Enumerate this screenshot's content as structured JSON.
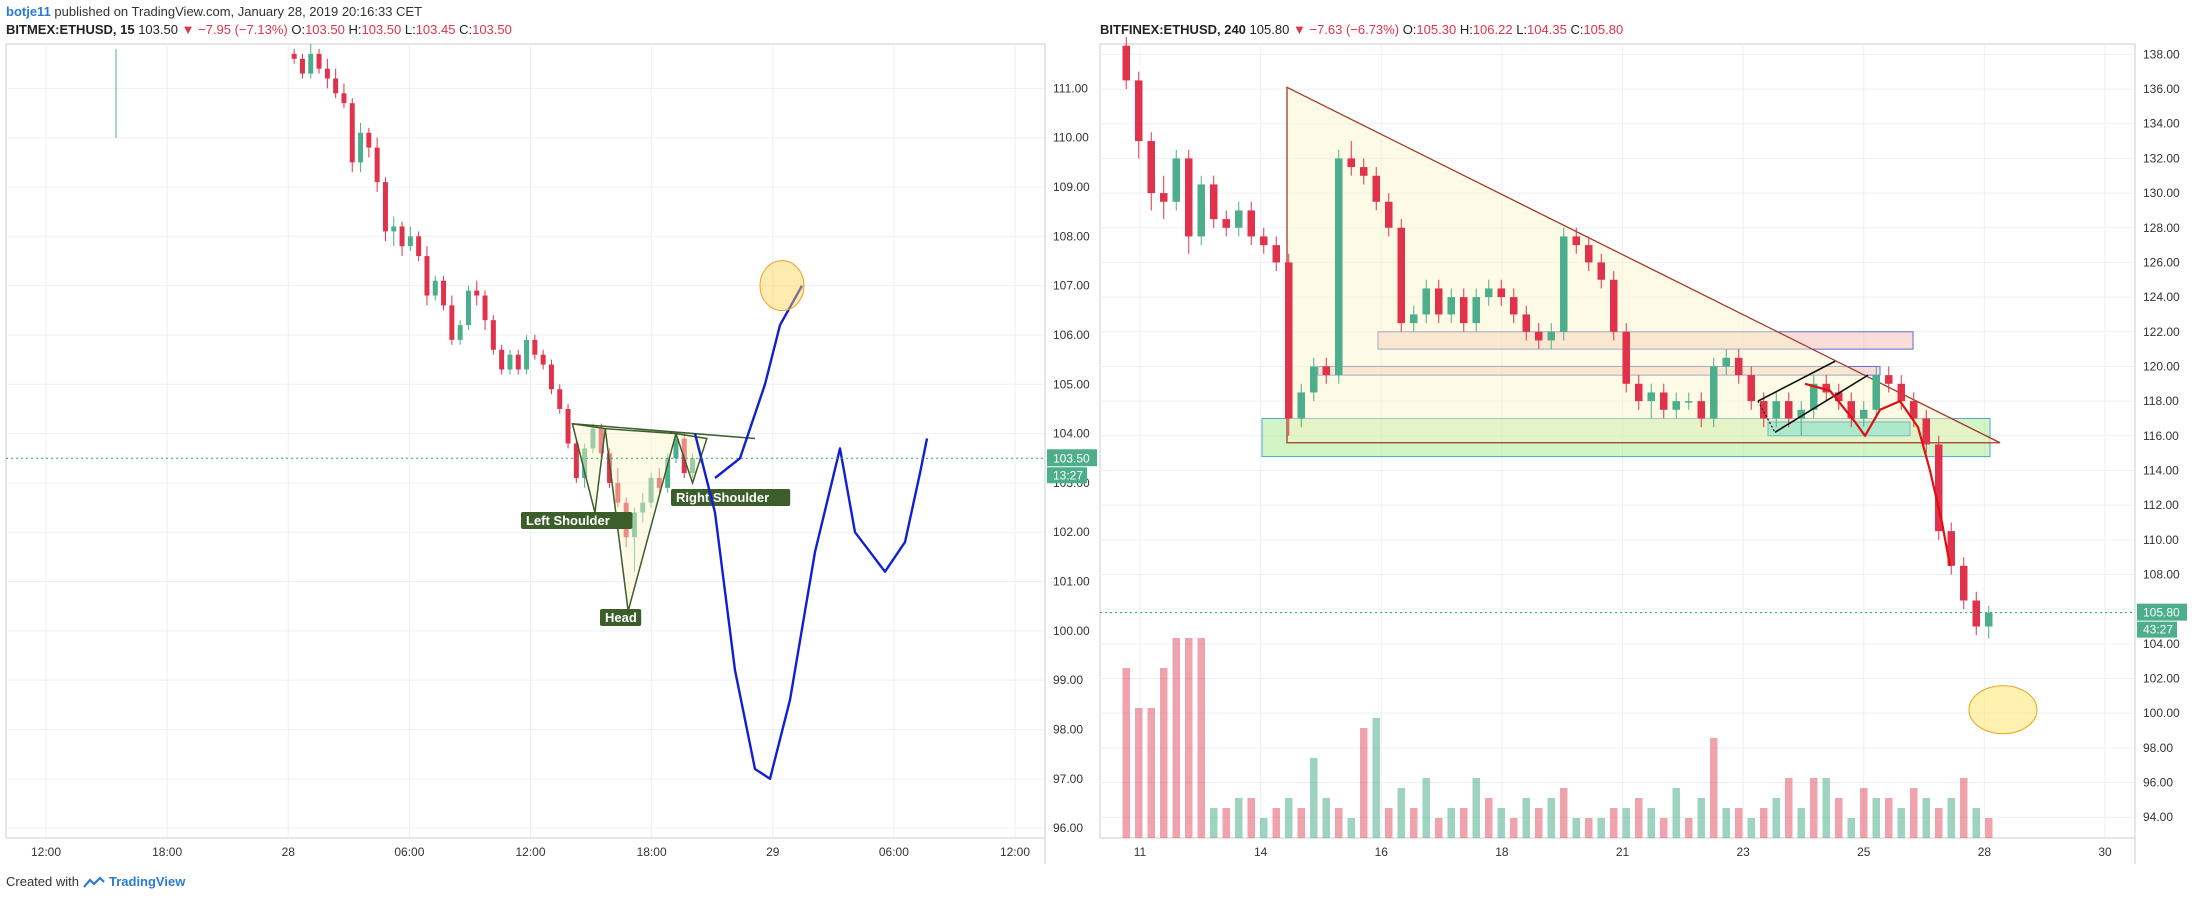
{
  "header": {
    "user": "botje11",
    "published_text": "published on TradingView.com, January 28, 2019 20:16:33 CET"
  },
  "footer": {
    "created_with": "Created with",
    "brand": "TradingView"
  },
  "colors": {
    "up": "#4cae8a",
    "down": "#e0324a",
    "annotation_green": "#3b5e2b",
    "drawing_blue": "#1020d0",
    "price_line": "#2aa07a"
  },
  "icons": [
    "tradingview-logo-icon",
    "down-triangle-icon"
  ],
  "chart_data": [
    {
      "type": "candlestick",
      "symbol": "BITMEX:ETHUSD, 15",
      "last": "103.50",
      "change": "−7.95 (−7.13%)",
      "ohlc": {
        "O": "103.50",
        "H": "103.50",
        "L": "103.45",
        "C": "103.50"
      },
      "current_price_label": "103.50",
      "countdown_label": "13:27",
      "current_price": 103.5,
      "ylim": [
        95.8,
        111.9
      ],
      "y_ticks": [
        96,
        97,
        98,
        99,
        100,
        101,
        102,
        103,
        104,
        105,
        106,
        107,
        108,
        109,
        110,
        111
      ],
      "y_tick_labels": [
        "96.00",
        "97.00",
        "98.00",
        "99.00",
        "100.00",
        "101.00",
        "102.00",
        "103.00",
        "104.00",
        "105.00",
        "106.00",
        "107.00",
        "108.00",
        "109.00",
        "110.00",
        "111.00"
      ],
      "x_ticks": [
        "12:00",
        "18:00",
        "28",
        "06:00",
        "12:00",
        "18:00",
        "29",
        "06:00",
        "12:00"
      ],
      "annotations": [
        "Left Shoulder",
        "Head",
        "Right Shoulder"
      ],
      "candles": [
        [
          111.7,
          111.8,
          111.5,
          111.6
        ],
        [
          111.6,
          111.7,
          111.2,
          111.3
        ],
        [
          111.3,
          111.9,
          111.2,
          111.7
        ],
        [
          111.7,
          111.8,
          111.3,
          111.4
        ],
        [
          111.4,
          111.6,
          111.0,
          111.2
        ],
        [
          111.2,
          111.4,
          110.8,
          110.9
        ],
        [
          110.9,
          111.1,
          110.6,
          110.7
        ],
        [
          110.7,
          110.8,
          109.3,
          109.5
        ],
        [
          109.5,
          110.3,
          109.3,
          110.1
        ],
        [
          110.1,
          110.2,
          109.6,
          109.8
        ],
        [
          109.8,
          110.0,
          108.9,
          109.1
        ],
        [
          109.1,
          109.2,
          107.9,
          108.1
        ],
        [
          108.1,
          108.4,
          107.8,
          108.2
        ],
        [
          108.2,
          108.3,
          107.6,
          107.8
        ],
        [
          107.8,
          108.2,
          107.7,
          108.0
        ],
        [
          108.0,
          108.1,
          107.5,
          107.6
        ],
        [
          107.6,
          107.8,
          106.6,
          106.8
        ],
        [
          106.8,
          107.2,
          106.7,
          107.1
        ],
        [
          107.1,
          107.2,
          106.5,
          106.6
        ],
        [
          106.6,
          106.8,
          105.8,
          105.9
        ],
        [
          105.9,
          106.3,
          105.8,
          106.2
        ],
        [
          106.2,
          107.0,
          106.1,
          106.9
        ],
        [
          106.9,
          107.1,
          106.6,
          106.8
        ],
        [
          106.8,
          106.9,
          106.1,
          106.3
        ],
        [
          106.3,
          106.4,
          105.6,
          105.7
        ],
        [
          105.7,
          105.8,
          105.2,
          105.3
        ],
        [
          105.3,
          105.7,
          105.2,
          105.6
        ],
        [
          105.6,
          105.7,
          105.2,
          105.3
        ],
        [
          105.3,
          106.0,
          105.2,
          105.9
        ],
        [
          105.9,
          106.0,
          105.5,
          105.6
        ],
        [
          105.6,
          105.7,
          105.3,
          105.4
        ],
        [
          105.4,
          105.5,
          104.8,
          104.9
        ],
        [
          104.9,
          105.0,
          104.4,
          104.5
        ],
        [
          104.5,
          104.6,
          103.7,
          103.8
        ],
        [
          103.8,
          103.9,
          103.0,
          103.1
        ],
        [
          103.1,
          103.8,
          102.9,
          103.7
        ],
        [
          103.7,
          104.2,
          103.6,
          104.1
        ],
        [
          104.1,
          104.2,
          103.5,
          103.6
        ],
        [
          103.6,
          103.7,
          102.9,
          103.0
        ],
        [
          103.0,
          103.3,
          102.5,
          102.6
        ],
        [
          102.6,
          102.7,
          101.7,
          101.9
        ],
        [
          101.9,
          102.5,
          101.2,
          102.4
        ],
        [
          102.4,
          102.8,
          102.2,
          102.6
        ],
        [
          102.6,
          103.2,
          102.5,
          103.1
        ],
        [
          103.1,
          103.3,
          102.8,
          102.9
        ],
        [
          102.9,
          103.6,
          102.8,
          103.5
        ],
        [
          103.5,
          104.0,
          103.4,
          103.9
        ],
        [
          103.9,
          104.0,
          103.1,
          103.2
        ],
        [
          103.2,
          103.6,
          103.1,
          103.5
        ],
        [
          103.5,
          103.6,
          103.4,
          103.5
        ]
      ],
      "drawing_path": [
        [
          103.5,
          104.8
        ],
        [
          103.0,
          103.8
        ],
        [
          100.0,
          101.2
        ],
        [
          97.0,
          97.4
        ],
        [
          97.8,
          97.0
        ],
        [
          101.0,
          100.4
        ],
        [
          103.6,
          103.6
        ],
        [
          101.8,
          101.7
        ],
        [
          101.3,
          101.2
        ],
        [
          102.6,
          102.5
        ],
        [
          103.8,
          103.9
        ]
      ],
      "projection_path": [
        [
          103.0,
          103.2
        ],
        [
          105.0,
          105.3
        ],
        [
          107.0,
          107.0
        ]
      ]
    },
    {
      "type": "candlestick",
      "symbol": "BITFINEX:ETHUSD, 240",
      "last": "105.80",
      "change": "−7.63 (−6.73%)",
      "ohlc": {
        "O": "105.30",
        "H": "106.22",
        "L": "104.35",
        "C": "105.80"
      },
      "current_price_label": "105.80",
      "countdown_label": "43:27",
      "current_price": 105.8,
      "ylim": [
        92.8,
        138.6
      ],
      "y_ticks": [
        94,
        96,
        98,
        100,
        102,
        104,
        106,
        108,
        110,
        112,
        114,
        116,
        118,
        120,
        122,
        124,
        126,
        128,
        130,
        132,
        134,
        136,
        138
      ],
      "y_tick_labels": [
        "94.00",
        "96.00",
        "98.00",
        "100.00",
        "102.00",
        "104.00",
        "106.00",
        "108.00",
        "110.00",
        "112.00",
        "114.00",
        "116.00",
        "118.00",
        "120.00",
        "122.00",
        "124.00",
        "126.00",
        "128.00",
        "130.00",
        "132.00",
        "134.00",
        "136.00",
        "138.00"
      ],
      "x_ticks": [
        "11",
        "14",
        "16",
        "18",
        "21",
        "23",
        "25",
        "28",
        "30"
      ],
      "candles": [
        [
          138.5,
          139.0,
          136.0,
          136.5
        ],
        [
          136.5,
          137.0,
          132.0,
          133.0
        ],
        [
          133.0,
          133.5,
          129.0,
          130.0
        ],
        [
          130.0,
          131.0,
          128.5,
          129.5
        ],
        [
          129.5,
          132.5,
          129.0,
          132.0
        ],
        [
          132.0,
          132.5,
          126.5,
          127.5
        ],
        [
          127.5,
          131.0,
          127.0,
          130.5
        ],
        [
          130.5,
          131.0,
          128.0,
          128.5
        ],
        [
          128.5,
          129.0,
          127.5,
          128.0
        ],
        [
          128.0,
          129.5,
          127.5,
          129.0
        ],
        [
          129.0,
          129.5,
          127.0,
          127.5
        ],
        [
          127.5,
          128.0,
          126.5,
          127.0
        ],
        [
          127.0,
          127.5,
          125.5,
          126.0
        ],
        [
          126.0,
          126.5,
          116.0,
          117.0
        ],
        [
          117.0,
          119.0,
          116.5,
          118.5
        ],
        [
          118.5,
          120.5,
          118.0,
          120.0
        ],
        [
          120.0,
          120.5,
          119.0,
          119.5
        ],
        [
          119.5,
          132.5,
          119.0,
          132.0
        ],
        [
          132.0,
          133.0,
          131.0,
          131.5
        ],
        [
          131.5,
          132.0,
          130.5,
          131.0
        ],
        [
          131.0,
          131.5,
          129.0,
          129.5
        ],
        [
          129.5,
          130.0,
          127.5,
          128.0
        ],
        [
          128.0,
          128.5,
          122.0,
          122.5
        ],
        [
          122.5,
          123.5,
          122.0,
          123.0
        ],
        [
          123.0,
          125.0,
          122.5,
          124.5
        ],
        [
          124.5,
          125.0,
          122.5,
          123.0
        ],
        [
          123.0,
          124.5,
          122.5,
          124.0
        ],
        [
          124.0,
          124.5,
          122.0,
          122.5
        ],
        [
          122.5,
          124.5,
          122.0,
          124.0
        ],
        [
          124.0,
          125.0,
          123.5,
          124.5
        ],
        [
          124.5,
          125.0,
          123.5,
          124.0
        ],
        [
          124.0,
          124.5,
          122.5,
          123.0
        ],
        [
          123.0,
          123.5,
          121.5,
          122.0
        ],
        [
          122.0,
          122.5,
          121.0,
          121.5
        ],
        [
          121.5,
          122.5,
          121.0,
          122.0
        ],
        [
          122.0,
          128.0,
          121.5,
          127.5
        ],
        [
          127.5,
          128.0,
          126.5,
          127.0
        ],
        [
          127.0,
          127.5,
          125.5,
          126.0
        ],
        [
          126.0,
          126.5,
          124.5,
          125.0
        ],
        [
          125.0,
          125.5,
          121.5,
          122.0
        ],
        [
          122.0,
          122.5,
          118.5,
          119.0
        ],
        [
          119.0,
          119.5,
          117.5,
          118.0
        ],
        [
          118.0,
          119.0,
          117.0,
          118.5
        ],
        [
          118.5,
          119.0,
          117.0,
          117.5
        ],
        [
          117.5,
          118.5,
          117.0,
          118.0
        ],
        [
          118.0,
          118.5,
          117.5,
          118.0
        ],
        [
          118.0,
          118.5,
          116.5,
          117.0
        ],
        [
          117.0,
          120.5,
          116.5,
          120.0
        ],
        [
          120.0,
          121.0,
          119.5,
          120.5
        ],
        [
          120.5,
          121.0,
          119.0,
          119.5
        ],
        [
          119.5,
          120.0,
          117.5,
          118.0
        ],
        [
          118.0,
          118.5,
          116.5,
          117.0
        ],
        [
          117.0,
          118.5,
          116.5,
          118.0
        ],
        [
          118.0,
          118.5,
          116.5,
          117.0
        ],
        [
          117.0,
          118.0,
          116.0,
          117.5
        ],
        [
          117.5,
          119.5,
          117.0,
          119.0
        ],
        [
          119.0,
          119.5,
          118.0,
          118.5
        ],
        [
          118.5,
          119.0,
          117.5,
          118.0
        ],
        [
          118.0,
          118.5,
          116.5,
          117.0
        ],
        [
          117.0,
          118.0,
          116.5,
          117.5
        ],
        [
          117.5,
          120.0,
          117.0,
          119.5
        ],
        [
          119.5,
          120.0,
          118.5,
          119.0
        ],
        [
          119.0,
          119.5,
          117.5,
          118.0
        ],
        [
          118.0,
          118.5,
          116.5,
          117.0
        ],
        [
          117.0,
          117.5,
          115.0,
          115.5
        ],
        [
          115.5,
          116.0,
          110.0,
          110.5
        ],
        [
          110.5,
          111.0,
          108.0,
          108.5
        ],
        [
          108.5,
          109.0,
          106.0,
          106.5
        ],
        [
          106.5,
          107.0,
          104.5,
          105.0
        ],
        [
          105.0,
          106.2,
          104.3,
          105.8
        ]
      ],
      "volume": [
        17,
        13,
        13,
        17,
        20,
        20,
        20,
        3,
        3,
        4,
        4,
        2,
        3,
        4,
        3,
        8,
        4,
        3,
        2,
        11,
        12,
        3,
        5,
        3,
        6,
        2,
        3,
        3,
        6,
        4,
        3,
        2,
        4,
        3,
        4,
        5,
        2,
        2,
        2,
        3,
        3,
        4,
        3,
        2,
        5,
        2,
        4,
        10,
        3,
        3,
        2,
        3,
        4,
        6,
        3,
        6,
        6,
        4,
        2,
        5,
        4,
        4,
        3,
        5,
        4,
        3,
        4,
        6,
        3,
        2
      ],
      "volume_up": [
        false,
        false,
        false,
        false,
        false,
        false,
        false,
        true,
        false,
        true,
        false,
        true,
        false,
        true,
        false,
        true,
        true,
        false,
        true,
        false,
        true,
        false,
        true,
        false,
        true,
        false,
        true,
        false,
        true,
        false,
        true,
        false,
        true,
        false,
        true,
        false,
        true,
        false,
        true,
        false,
        true,
        false,
        true,
        false,
        true,
        false,
        true,
        false,
        true,
        false,
        true,
        false,
        true,
        false,
        true,
        false,
        true,
        false,
        true,
        false,
        true,
        false,
        true,
        false,
        true,
        false,
        true,
        false,
        true,
        false
      ],
      "red_path": [
        [
          115.0,
          117.5
        ],
        [
          114.8,
          116.8
        ],
        [
          111.0,
          113.0
        ],
        [
          108.0,
          108.5
        ]
      ]
    }
  ]
}
